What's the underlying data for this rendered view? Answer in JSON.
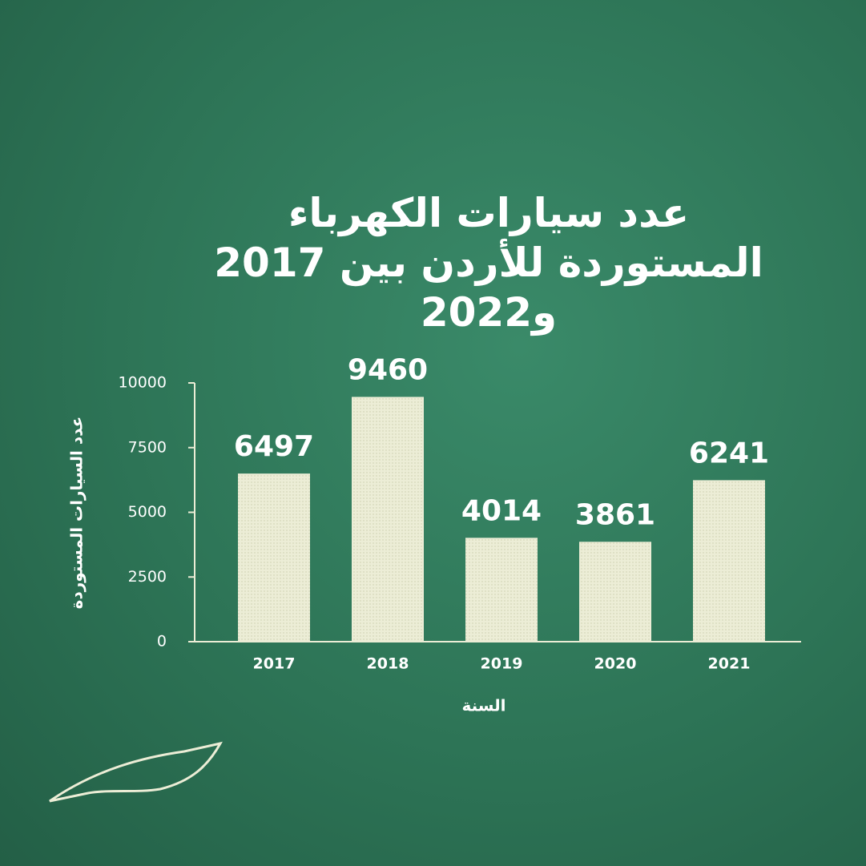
{
  "chart_data": {
    "type": "bar",
    "title": "عدد سيارات الكهرباء المستوردة للأردن بين 2017 و2022",
    "y_label": "عدد السيارات المستوردة",
    "x_label": "السنة",
    "categories": [
      "2017",
      "2018",
      "2019",
      "2020",
      "2021"
    ],
    "values": [
      6497,
      9460,
      4014,
      3861,
      6241
    ],
    "color": "#ecedd6",
    "ylim": [
      0,
      10000
    ],
    "yticks": [
      0,
      2500,
      5000,
      7500,
      10000
    ]
  }
}
